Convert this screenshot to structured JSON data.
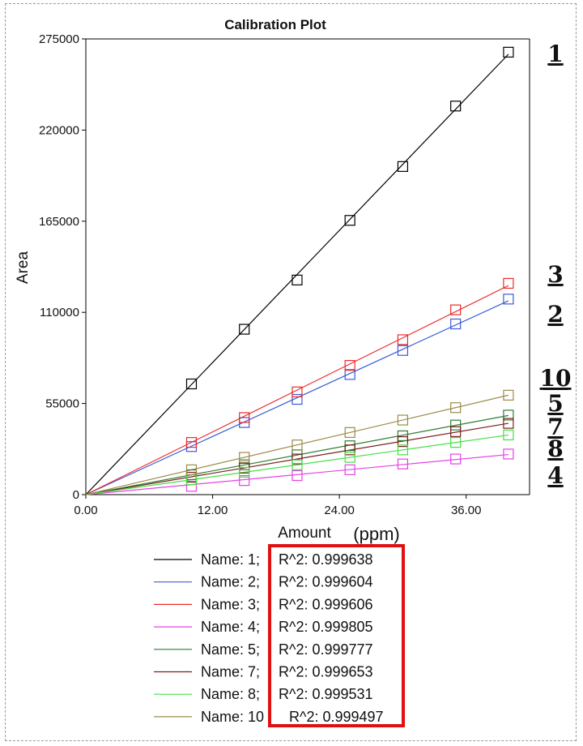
{
  "chart_data": {
    "type": "line",
    "title": "Calibration Plot",
    "xlabel": "Amount",
    "xlabel_unit": "(ppm)",
    "ylabel": "Area",
    "xlim": [
      0,
      42
    ],
    "ylim": [
      0,
      275000
    ],
    "x_ticks": [
      "0.00",
      "12.00",
      "24.00",
      "36.00"
    ],
    "y_ticks": [
      "0",
      "55000",
      "110000",
      "165000",
      "220000",
      "275000"
    ],
    "x": [
      10,
      15,
      20,
      25,
      30,
      35,
      40
    ],
    "grid": false,
    "legend_position": "bottom",
    "series": [
      {
        "name": "1",
        "color": "#000000",
        "values": [
          66800,
          99800,
          129500,
          165500,
          198000,
          234500,
          267000
        ],
        "r2_label": "R^2: 0.999638"
      },
      {
        "name": "2",
        "color": "#3b5bd6",
        "values": [
          29000,
          43500,
          57500,
          72500,
          87000,
          103000,
          118000
        ],
        "r2_label": "R^2: 0.999604"
      },
      {
        "name": "3",
        "color": "#ee2a2a",
        "values": [
          31500,
          46500,
          62000,
          78000,
          93500,
          111500,
          127500
        ],
        "r2_label": "R^2: 0.999606"
      },
      {
        "name": "4",
        "color": "#e641e6",
        "values": [
          5000,
          8500,
          11500,
          15000,
          18500,
          21500,
          24500
        ],
        "r2_label": "R^2: 0.999805"
      },
      {
        "name": "5",
        "color": "#2e7d32",
        "values": [
          12000,
          18000,
          24000,
          29500,
          35500,
          42000,
          48000
        ],
        "r2_label": "R^2: 0.999777"
      },
      {
        "name": "7",
        "color": "#7a1f1f",
        "values": [
          10500,
          16000,
          21500,
          27000,
          32000,
          38000,
          43000
        ],
        "r2_label": "R^2: 0.999653"
      },
      {
        "name": "8",
        "color": "#44e044",
        "values": [
          9000,
          13500,
          18000,
          22500,
          27000,
          31500,
          36000
        ],
        "r2_label": "R^2: 0.999531"
      },
      {
        "name": "10",
        "color": "#9c8b4a",
        "values": [
          15000,
          22500,
          30000,
          37500,
          45000,
          52500,
          60000
        ],
        "r2_label": "R^2: 0.999497"
      }
    ],
    "legend_entries": [
      {
        "label": "Name: 1;",
        "r2": "R^2: 0.999638",
        "color": "#000000"
      },
      {
        "label": "Name: 2;",
        "r2": "R^2: 0.999604",
        "color": "#3b5bd6"
      },
      {
        "label": "Name: 3;",
        "r2": "R^2: 0.999606",
        "color": "#ee2a2a"
      },
      {
        "label": "Name: 4;",
        "r2": "R^2: 0.999805",
        "color": "#e641e6"
      },
      {
        "label": "Name: 5;",
        "r2": "R^2: 0.999777",
        "color": "#2e7d32"
      },
      {
        "label": "Name: 7;",
        "r2": "R^2: 0.999653",
        "color": "#7a1f1f"
      },
      {
        "label": "Name: 8;",
        "r2": "R^2: 0.999531",
        "color": "#44e044"
      },
      {
        "label": "Name: 10",
        "r2": "R^2: 0.999497",
        "color": "#9c8b4a"
      }
    ],
    "callouts": [
      "1",
      "3",
      "2",
      "10",
      "5",
      "7",
      "8",
      "4"
    ],
    "highlight_box_color": "#e01010"
  }
}
